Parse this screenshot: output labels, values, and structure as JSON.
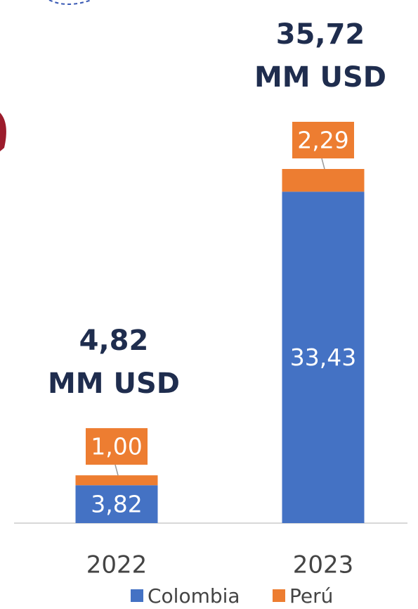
{
  "chart_data": {
    "type": "stacked_bar",
    "categories": [
      "2022",
      "2023"
    ],
    "series": [
      {
        "name": "Colombia",
        "color": "#4472c4",
        "values": [
          3.82,
          33.43
        ],
        "value_labels": [
          "3,82",
          "33,43"
        ]
      },
      {
        "name": "Perú",
        "color": "#ed7d31",
        "values": [
          1.0,
          2.29
        ],
        "value_labels": [
          "1,00",
          "2,29"
        ]
      }
    ],
    "total_labels": [
      [
        "4,82",
        "MM USD"
      ],
      [
        "35,72",
        "MM USD"
      ]
    ]
  }
}
